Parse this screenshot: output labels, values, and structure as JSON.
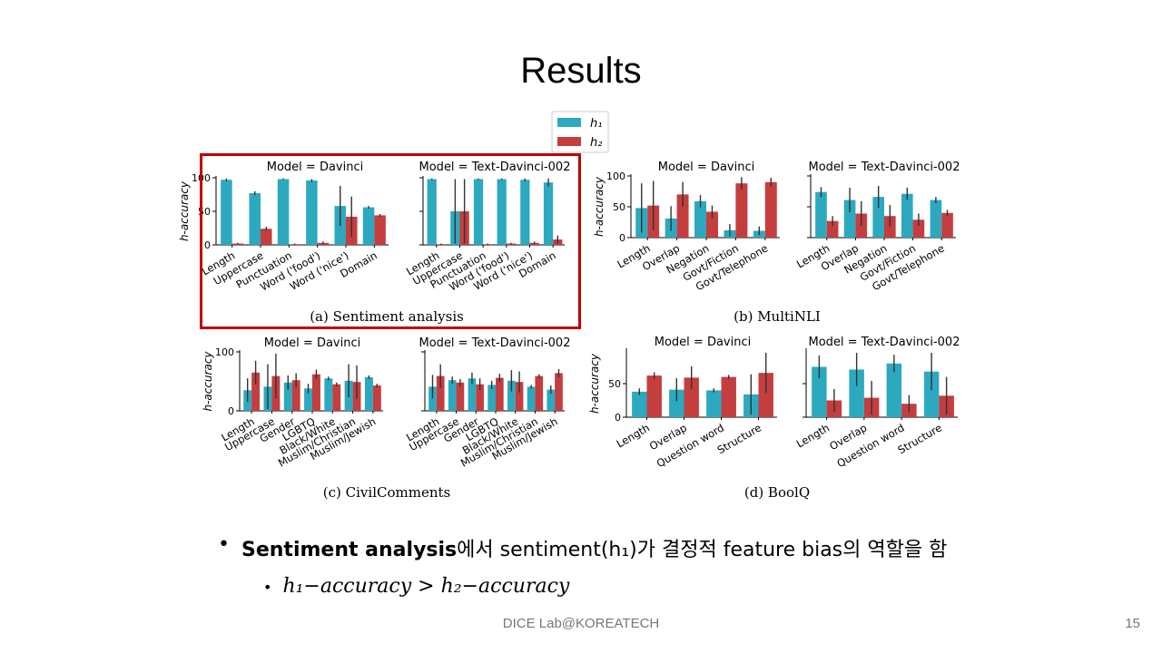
{
  "slide": {
    "title": "Results",
    "footer": "DICE Lab@KOREATECH",
    "page_number": "15",
    "bullet1_bold": "Sentiment analysis",
    "bullet1_rest": "에서 sentiment(h₁)가 결정적 feature bias의 역할을 함",
    "bullet2": "h₁−accuracy > h₂−accuracy"
  },
  "colors": {
    "h1": "#2ca9bf",
    "h2": "#c43d3f",
    "highlight": "#c00000"
  },
  "legend": [
    "h₁",
    "h₂"
  ],
  "chart_data": [
    {
      "type": "bar",
      "panel": "a",
      "caption": "(a) Sentiment analysis",
      "title": "Model = Davinci",
      "ylabel": "h-accuracy",
      "ylim": [
        0,
        100
      ],
      "yticks": [
        0,
        50,
        100
      ],
      "categories": [
        "Length",
        "Uppercase",
        "Punctuation",
        "Word ('food')",
        "Word ('nice')",
        "Domain"
      ],
      "series": [
        {
          "name": "h₁",
          "values": [
            97,
            77,
            98,
            96,
            58,
            56
          ],
          "err": [
            2,
            3,
            1,
            2,
            30,
            2
          ]
        },
        {
          "name": "h₂",
          "values": [
            2,
            24,
            1,
            3,
            42,
            44
          ],
          "err": [
            1,
            3,
            1,
            2,
            30,
            2
          ]
        }
      ]
    },
    {
      "type": "bar",
      "panel": "a",
      "title": "Model = Text-Davinci-002",
      "ylabel": "",
      "ylim": [
        0,
        100
      ],
      "yticks": [
        0,
        50,
        100
      ],
      "categories": [
        "Length",
        "Uppercase",
        "Punctuation",
        "Word ('food')",
        "Word ('nice')",
        "Domain"
      ],
      "series": [
        {
          "name": "h₁",
          "values": [
            98,
            50,
            98,
            98,
            97,
            93
          ],
          "err": [
            1,
            48,
            1,
            1,
            2,
            6
          ]
        },
        {
          "name": "h₂",
          "values": [
            1,
            50,
            1,
            2,
            3,
            8
          ],
          "err": [
            1,
            48,
            1,
            1,
            2,
            6
          ]
        }
      ]
    },
    {
      "type": "bar",
      "panel": "b",
      "caption": "(b) MultiNLI",
      "title": "Model = Davinci",
      "ylabel": "h-accuracy",
      "ylim": [
        0,
        100
      ],
      "yticks": [
        0,
        50,
        100
      ],
      "categories": [
        "Length",
        "Overlap",
        "Negation",
        "Govt/Fiction",
        "Govt/Telephone"
      ],
      "series": [
        {
          "name": "h₁",
          "values": [
            48,
            31,
            59,
            12,
            11
          ],
          "err": [
            40,
            20,
            10,
            10,
            7
          ]
        },
        {
          "name": "h₂",
          "values": [
            52,
            70,
            42,
            88,
            90
          ],
          "err": [
            40,
            20,
            10,
            10,
            7
          ]
        }
      ]
    },
    {
      "type": "bar",
      "panel": "b",
      "title": "Model = Text-Davinci-002",
      "ylabel": "",
      "ylim": [
        0,
        100
      ],
      "yticks": [
        0,
        50,
        100
      ],
      "categories": [
        "Length",
        "Overlap",
        "Negation",
        "Govt/Fiction",
        "Govt/Telephone"
      ],
      "series": [
        {
          "name": "h₁",
          "values": [
            74,
            61,
            66,
            71,
            61
          ],
          "err": [
            8,
            20,
            18,
            10,
            5
          ]
        },
        {
          "name": "h₂",
          "values": [
            27,
            39,
            35,
            29,
            40
          ],
          "err": [
            8,
            20,
            18,
            10,
            5
          ]
        }
      ]
    },
    {
      "type": "bar",
      "panel": "c",
      "caption": "(c) CivilComments",
      "title": "Model = Davinci",
      "ylabel": "h-accuracy",
      "ylim": [
        0,
        100
      ],
      "yticks": [
        0,
        100
      ],
      "categories": [
        "Length",
        "Uppercase",
        "Gender",
        "LGBTQ",
        "Black/White",
        "Muslim/Christian",
        "Muslim/Jewish"
      ],
      "series": [
        {
          "name": "h₁",
          "values": [
            35,
            41,
            48,
            38,
            55,
            51,
            57
          ],
          "err": [
            20,
            38,
            12,
            8,
            3,
            28,
            3
          ]
        },
        {
          "name": "h₂",
          "values": [
            65,
            59,
            52,
            62,
            45,
            49,
            43
          ],
          "err": [
            20,
            38,
            12,
            8,
            3,
            28,
            3
          ]
        }
      ]
    },
    {
      "type": "bar",
      "panel": "c",
      "title": "Model = Text-Davinci-002",
      "ylabel": "",
      "ylim": [
        0,
        100
      ],
      "yticks": [
        0,
        100
      ],
      "categories": [
        "Length",
        "Uppercase",
        "Gender",
        "LGBTQ",
        "Black/White",
        "Muslim/Christian",
        "Muslim/Jewish"
      ],
      "series": [
        {
          "name": "h₁",
          "values": [
            41,
            52,
            55,
            44,
            51,
            41,
            36
          ],
          "err": [
            20,
            6,
            10,
            7,
            18,
            3,
            7
          ]
        },
        {
          "name": "h₂",
          "values": [
            59,
            48,
            45,
            56,
            49,
            59,
            64
          ],
          "err": [
            20,
            6,
            10,
            7,
            18,
            3,
            7
          ]
        }
      ]
    },
    {
      "type": "bar",
      "panel": "d",
      "caption": "(d) BoolQ",
      "title": "Model = Davinci",
      "ylabel": "h-accuracy",
      "ylim": [
        0,
        100
      ],
      "yticks": [
        0,
        50
      ],
      "categories": [
        "Length",
        "Overlap",
        "Question word",
        "Structure"
      ],
      "series": [
        {
          "name": "h₁",
          "values": [
            38,
            41,
            40,
            34
          ],
          "err": [
            5,
            17,
            3,
            30
          ]
        },
        {
          "name": "h₂",
          "values": [
            62,
            59,
            60,
            66
          ],
          "err": [
            5,
            17,
            3,
            30
          ]
        }
      ]
    },
    {
      "type": "bar",
      "panel": "d",
      "title": "Model = Text-Davinci-002",
      "ylabel": "",
      "ylim": [
        0,
        100
      ],
      "yticks": [
        0,
        50
      ],
      "categories": [
        "Length",
        "Overlap",
        "Question word",
        "Structure"
      ],
      "series": [
        {
          "name": "h₁",
          "values": [
            75,
            71,
            80,
            68
          ],
          "err": [
            17,
            25,
            13,
            28
          ]
        },
        {
          "name": "h₂",
          "values": [
            25,
            29,
            20,
            32
          ],
          "err": [
            17,
            25,
            13,
            28
          ]
        }
      ]
    }
  ]
}
